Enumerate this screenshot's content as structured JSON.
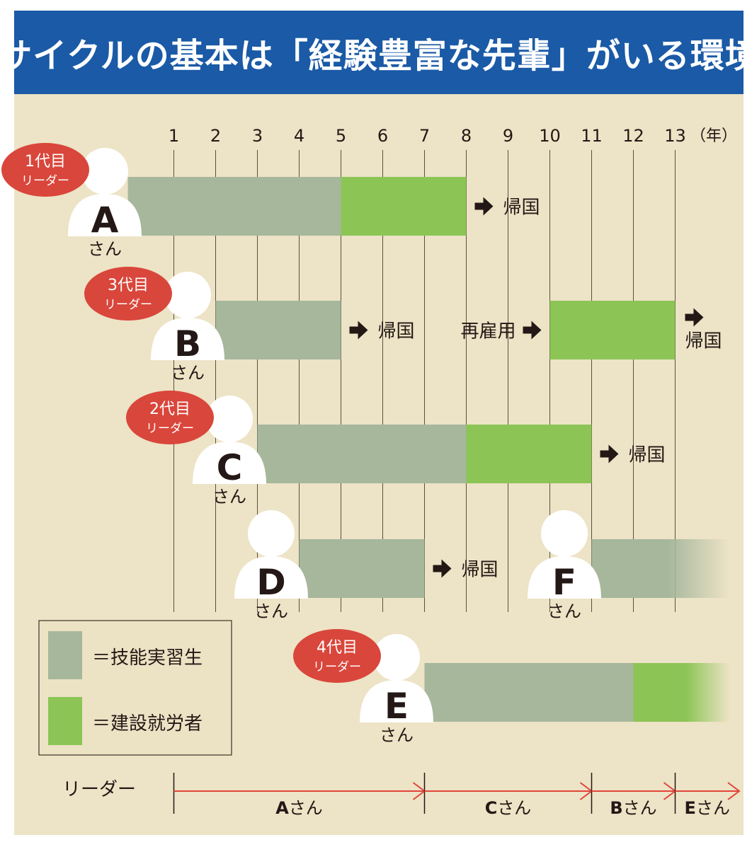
{
  "title": "サイクルの基本は「経験豊富な先輩」がいる環境",
  "year_unit": "（年）",
  "years": [
    "1",
    "2",
    "3",
    "4",
    "5",
    "6",
    "7",
    "8",
    "9",
    "10",
    "11",
    "12",
    "13"
  ],
  "honorific": "さん",
  "return_label": "帰国",
  "rehire_label": "再雇用",
  "workers": [
    {
      "id": "A",
      "row": 0,
      "badge_line1": "1代目",
      "badge_line2": "リーダー",
      "segments": [
        {
          "type": "trainee",
          "start": -0.1,
          "end": 5
        },
        {
          "type": "construction",
          "start": 5,
          "end": 8
        }
      ],
      "notes": [
        {
          "kind": "return",
          "at": 8
        }
      ]
    },
    {
      "id": "B",
      "row": 1,
      "badge_line1": "3代目",
      "badge_line2": "リーダー",
      "segments": [
        {
          "type": "trainee",
          "start": 2,
          "end": 5
        },
        {
          "type": "construction",
          "start": 10,
          "end": 13
        }
      ],
      "notes": [
        {
          "kind": "return",
          "at": 5
        },
        {
          "kind": "rehire",
          "at": 10
        },
        {
          "kind": "return_stacked",
          "at": 13
        }
      ]
    },
    {
      "id": "C",
      "row": 2,
      "badge_line1": "2代目",
      "badge_line2": "リーダー",
      "segments": [
        {
          "type": "trainee",
          "start": 3,
          "end": 8
        },
        {
          "type": "construction",
          "start": 8,
          "end": 11
        }
      ],
      "notes": [
        {
          "kind": "return",
          "at": 11
        }
      ]
    },
    {
      "id": "D",
      "row": 3,
      "badge_line1": "",
      "badge_line2": "",
      "segments": [
        {
          "type": "trainee",
          "start": 4,
          "end": 7
        }
      ],
      "notes": [
        {
          "kind": "return",
          "at": 7
        }
      ]
    },
    {
      "id": "F",
      "row": 3,
      "badge_line1": "",
      "badge_line2": "",
      "segments": [
        {
          "type": "trainee",
          "start": 11,
          "end": 14.3,
          "fade": true
        }
      ],
      "notes": []
    },
    {
      "id": "E",
      "row": 4,
      "badge_line1": "4代目",
      "badge_line2": "リーダー",
      "segments": [
        {
          "type": "trainee",
          "start": 7,
          "end": 12
        },
        {
          "type": "construction",
          "start": 12,
          "end": 14.3,
          "fade": true
        }
      ],
      "notes": []
    }
  ],
  "legend": [
    {
      "type": "trainee",
      "label": "＝技能実習生",
      "color": "#a6b79c"
    },
    {
      "type": "construction",
      "label": "＝建設就労者",
      "color": "#8cc556"
    }
  ],
  "leader_row": {
    "label": "リーダー",
    "terms": [
      {
        "name": "Aさん",
        "start": 1,
        "end": 7
      },
      {
        "name": "Cさん",
        "start": 7,
        "end": 11
      },
      {
        "name": "Bさん",
        "start": 11,
        "end": 13
      },
      {
        "name": "Eさん",
        "start": 13,
        "end": 14.6
      }
    ]
  },
  "colors": {
    "title_bg": "#1a5aa6",
    "badge": "#d9463b",
    "arrow_red": "#e0453a",
    "trainee": "#a6b79c",
    "construction": "#8cc556",
    "background": "#ede3c6"
  }
}
